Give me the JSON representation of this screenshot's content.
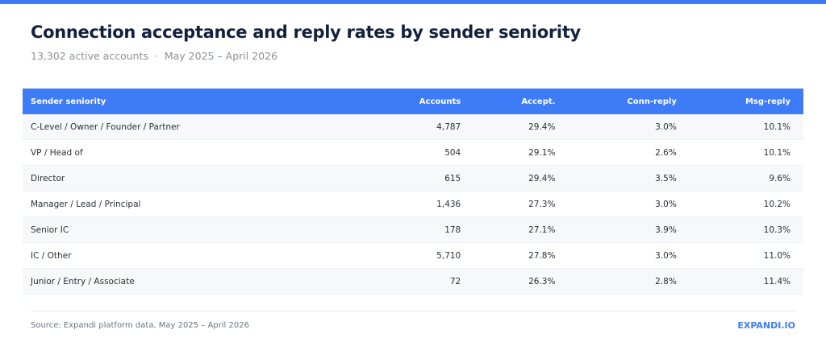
{
  "header": {
    "title": "Connection acceptance and reply rates by sender seniority",
    "subtitle": "13,302 active accounts  ·  May 2025 – April 2026"
  },
  "table": {
    "columns": [
      "Sender seniority",
      "Accounts",
      "Accept.",
      "Conn-reply",
      "Msg-reply"
    ],
    "rows": [
      [
        "C-Level / Owner / Founder / Partner",
        "4,787",
        "29.4%",
        "3.0%",
        "10.1%"
      ],
      [
        "VP / Head of",
        "504",
        "29.1%",
        "2.6%",
        "10.1%"
      ],
      [
        "Director",
        "615",
        "29.4%",
        "3.5%",
        "9.6%"
      ],
      [
        "Manager / Lead / Principal",
        "1,436",
        "27.3%",
        "3.0%",
        "10.2%"
      ],
      [
        "Senior IC",
        "178",
        "27.1%",
        "3.9%",
        "10.3%"
      ],
      [
        "IC / Other",
        "5,710",
        "27.8%",
        "3.0%",
        "11.0%"
      ],
      [
        "Junior / Entry / Associate",
        "72",
        "26.3%",
        "2.8%",
        "11.4%"
      ]
    ]
  },
  "footer": {
    "source": "Source: Expandi platform data, May 2025 – April 2026",
    "brand": "EXPANDI.IO"
  }
}
